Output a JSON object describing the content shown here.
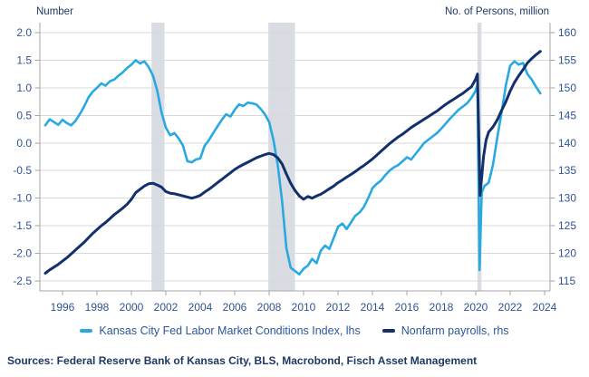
{
  "footer": {
    "sources": "Sources: Federal Reserve Bank of Kansas City, BLS, Macrobond, Fisch Asset Management"
  },
  "legend": [
    {
      "label": "Kansas City Fed Labor Market Conditions Index, lhs",
      "color": "#29A9E1"
    },
    {
      "label": "Nonfarm payrolls, rhs",
      "color": "#12306B"
    }
  ],
  "colors": {
    "lmci_line": "#29A9E1",
    "payrolls_line": "#12306B",
    "tick_label": "#2F5496",
    "axis_title": "#1F3864",
    "gridline": "#D9D9D9",
    "axis_line": "#A6A6A6",
    "recession_band": "#D9DCE3",
    "background": "#FFFFFF"
  },
  "chart_data": {
    "type": "line",
    "title": "",
    "left_axis": {
      "title": "Number",
      "min": -2.5,
      "max": 2.0,
      "tick_labels": [
        "2.0",
        "1.5",
        "1.0",
        "0.5",
        "0.0",
        "-0.5",
        "-1.0",
        "-1.5",
        "-2.0",
        "-2.5"
      ]
    },
    "right_axis": {
      "title": "No. of Persons, million",
      "min": 115,
      "max": 160,
      "tick_labels": [
        "160",
        "155",
        "150",
        "145",
        "140",
        "135",
        "130",
        "125",
        "120",
        "115"
      ]
    },
    "x_axis": {
      "min": 1994.7,
      "max": 2024.3,
      "tick_labels": [
        "1996",
        "1998",
        "2000",
        "2002",
        "2004",
        "2006",
        "2008",
        "2010",
        "2012",
        "2014",
        "2016",
        "2018",
        "2020",
        "2022",
        "2024"
      ]
    },
    "grid": true,
    "legend_position": "bottom",
    "recession_bands": [
      [
        2001.17,
        2001.92
      ],
      [
        2007.95,
        2009.5
      ],
      [
        2020.1,
        2020.33
      ]
    ],
    "series": [
      {
        "name": "Kansas City Fed Labor Market Conditions Index, lhs",
        "axis": "left",
        "color": "#29A9E1",
        "width": 2.6,
        "x": [
          1995.0,
          1995.25,
          1995.5,
          1995.75,
          1996.0,
          1996.25,
          1996.5,
          1996.75,
          1997.0,
          1997.25,
          1997.5,
          1997.75,
          1998.0,
          1998.25,
          1998.5,
          1998.75,
          1999.0,
          1999.25,
          1999.5,
          1999.75,
          2000.0,
          2000.25,
          2000.5,
          2000.75,
          2001.0,
          2001.25,
          2001.5,
          2001.75,
          2002.0,
          2002.25,
          2002.5,
          2002.75,
          2003.0,
          2003.25,
          2003.5,
          2003.75,
          2004.0,
          2004.25,
          2004.5,
          2004.75,
          2005.0,
          2005.25,
          2005.5,
          2005.75,
          2006.0,
          2006.25,
          2006.5,
          2006.75,
          2007.0,
          2007.25,
          2007.5,
          2007.75,
          2008.0,
          2008.25,
          2008.5,
          2008.75,
          2009.0,
          2009.25,
          2009.5,
          2009.75,
          2010.0,
          2010.25,
          2010.5,
          2010.75,
          2011.0,
          2011.25,
          2011.5,
          2011.75,
          2012.0,
          2012.25,
          2012.5,
          2012.75,
          2013.0,
          2013.25,
          2013.5,
          2013.75,
          2014.0,
          2014.25,
          2014.5,
          2014.75,
          2015.0,
          2015.25,
          2015.5,
          2015.75,
          2016.0,
          2016.25,
          2016.5,
          2016.75,
          2017.0,
          2017.25,
          2017.5,
          2017.75,
          2018.0,
          2018.25,
          2018.5,
          2018.75,
          2019.0,
          2019.25,
          2019.5,
          2019.75,
          2020.0,
          2020.1,
          2020.22,
          2020.35,
          2020.5,
          2020.75,
          2021.0,
          2021.25,
          2021.5,
          2021.75,
          2022.0,
          2022.25,
          2022.5,
          2022.75,
          2023.0,
          2023.25,
          2023.5,
          2023.75
        ],
        "values": [
          0.32,
          0.43,
          0.38,
          0.33,
          0.42,
          0.36,
          0.32,
          0.4,
          0.52,
          0.66,
          0.82,
          0.93,
          1.0,
          1.08,
          1.04,
          1.12,
          1.15,
          1.22,
          1.28,
          1.36,
          1.42,
          1.5,
          1.44,
          1.48,
          1.38,
          1.22,
          0.95,
          0.55,
          0.28,
          0.14,
          0.18,
          0.08,
          -0.05,
          -0.33,
          -0.35,
          -0.3,
          -0.28,
          -0.05,
          0.05,
          0.18,
          0.3,
          0.42,
          0.52,
          0.48,
          0.6,
          0.7,
          0.67,
          0.73,
          0.72,
          0.7,
          0.62,
          0.52,
          0.38,
          0.05,
          -0.4,
          -1.05,
          -1.9,
          -2.26,
          -2.32,
          -2.38,
          -2.28,
          -2.22,
          -2.1,
          -2.18,
          -1.95,
          -1.86,
          -1.92,
          -1.72,
          -1.52,
          -1.46,
          -1.56,
          -1.44,
          -1.32,
          -1.26,
          -1.16,
          -1.0,
          -0.82,
          -0.74,
          -0.68,
          -0.58,
          -0.5,
          -0.44,
          -0.4,
          -0.33,
          -0.26,
          -0.3,
          -0.2,
          -0.1,
          0.0,
          0.06,
          0.12,
          0.18,
          0.26,
          0.35,
          0.44,
          0.52,
          0.6,
          0.66,
          0.72,
          0.82,
          0.95,
          1.05,
          -2.3,
          -0.9,
          -0.78,
          -0.72,
          -0.4,
          0.1,
          0.55,
          1.05,
          1.4,
          1.48,
          1.42,
          1.45,
          1.25,
          1.15,
          1.02,
          0.9
        ]
      },
      {
        "name": "Nonfarm payrolls, rhs",
        "axis": "right",
        "color": "#12306B",
        "width": 3,
        "x": [
          1995.0,
          1995.25,
          1995.5,
          1995.75,
          1996.0,
          1996.25,
          1996.5,
          1996.75,
          1997.0,
          1997.25,
          1997.5,
          1997.75,
          1998.0,
          1998.25,
          1998.5,
          1998.75,
          1999.0,
          1999.25,
          1999.5,
          1999.75,
          2000.0,
          2000.25,
          2000.5,
          2000.75,
          2001.0,
          2001.25,
          2001.5,
          2001.75,
          2002.0,
          2002.25,
          2002.5,
          2002.75,
          2003.0,
          2003.25,
          2003.5,
          2003.75,
          2004.0,
          2004.25,
          2004.5,
          2004.75,
          2005.0,
          2005.25,
          2005.5,
          2005.75,
          2006.0,
          2006.25,
          2006.5,
          2006.75,
          2007.0,
          2007.25,
          2007.5,
          2007.75,
          2008.0,
          2008.25,
          2008.5,
          2008.75,
          2009.0,
          2009.25,
          2009.5,
          2009.75,
          2010.0,
          2010.25,
          2010.5,
          2010.75,
          2011.0,
          2011.25,
          2011.5,
          2011.75,
          2012.0,
          2012.25,
          2012.5,
          2012.75,
          2013.0,
          2013.25,
          2013.5,
          2013.75,
          2014.0,
          2014.25,
          2014.5,
          2014.75,
          2015.0,
          2015.25,
          2015.5,
          2015.75,
          2016.0,
          2016.25,
          2016.5,
          2016.75,
          2017.0,
          2017.25,
          2017.5,
          2017.75,
          2018.0,
          2018.25,
          2018.5,
          2018.75,
          2019.0,
          2019.25,
          2019.5,
          2019.75,
          2020.0,
          2020.1,
          2020.25,
          2020.45,
          2020.6,
          2020.75,
          2021.0,
          2021.25,
          2021.5,
          2021.75,
          2022.0,
          2022.25,
          2022.5,
          2022.75,
          2023.0,
          2023.25,
          2023.5,
          2023.75
        ],
        "values": [
          116.4,
          117.0,
          117.5,
          118.0,
          118.6,
          119.2,
          119.9,
          120.6,
          121.3,
          122.0,
          122.8,
          123.6,
          124.3,
          125.0,
          125.6,
          126.3,
          127.0,
          127.6,
          128.2,
          128.9,
          129.8,
          131.0,
          131.6,
          132.2,
          132.6,
          132.7,
          132.4,
          132.0,
          131.2,
          130.9,
          130.8,
          130.6,
          130.4,
          130.2,
          130.0,
          130.2,
          130.5,
          131.1,
          131.6,
          132.2,
          132.8,
          133.4,
          134.0,
          134.6,
          135.2,
          135.7,
          136.1,
          136.5,
          136.9,
          137.3,
          137.6,
          137.9,
          138.1,
          137.9,
          137.3,
          136.2,
          134.4,
          132.7,
          131.4,
          130.4,
          129.8,
          130.3,
          130.0,
          130.4,
          130.7,
          131.2,
          131.7,
          132.2,
          132.8,
          133.3,
          133.8,
          134.3,
          134.8,
          135.4,
          135.9,
          136.5,
          137.1,
          137.8,
          138.5,
          139.2,
          139.9,
          140.5,
          141.1,
          141.6,
          142.2,
          142.8,
          143.3,
          143.8,
          144.3,
          144.8,
          145.3,
          145.8,
          146.4,
          147.0,
          147.5,
          148.0,
          148.5,
          149.0,
          149.6,
          150.2,
          151.6,
          152.5,
          130.5,
          137.5,
          140.5,
          142.0,
          142.9,
          144.2,
          145.9,
          147.5,
          149.4,
          151.0,
          152.2,
          153.3,
          154.5,
          155.3,
          156.0,
          156.6
        ]
      }
    ]
  }
}
